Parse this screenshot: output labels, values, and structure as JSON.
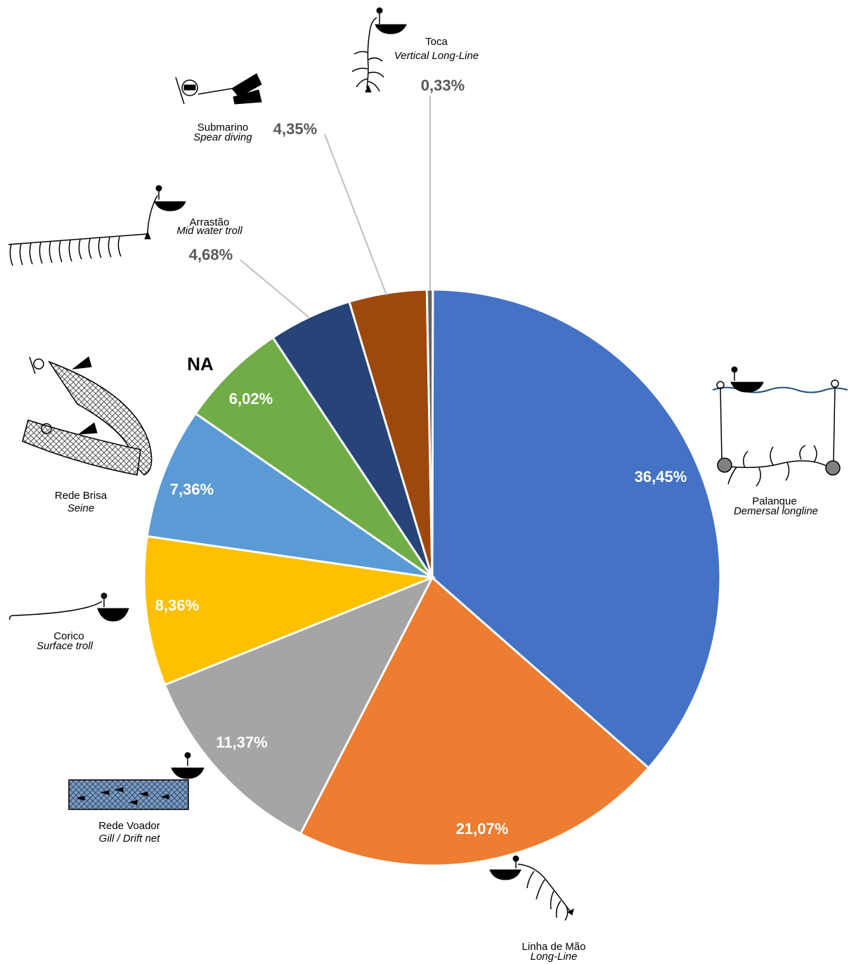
{
  "chart_data": {
    "type": "pie",
    "title": "",
    "slices": [
      {
        "label": "Palanque",
        "sublabel": "Demersal longline",
        "value": 36.45,
        "value_label": "36,45%",
        "color": "#4472C4",
        "icon": "demersal-longline-icon"
      },
      {
        "label": "Linha de Mão",
        "sublabel": "Long-Line",
        "value": 21.07,
        "value_label": "21,07%",
        "color": "#ED7D31",
        "icon": "hand-line-icon"
      },
      {
        "label": "Rede Voador",
        "sublabel": "Gill / Drift net",
        "value": 11.37,
        "value_label": "11,37%",
        "color": "#A5A5A5",
        "icon": "gill-net-icon"
      },
      {
        "label": "Corico",
        "sublabel": "Surface troll",
        "value": 8.36,
        "value_label": "8,36%",
        "color": "#FFC000",
        "icon": "surface-troll-icon"
      },
      {
        "label": "Rede Brisa",
        "sublabel": "Seine",
        "value": 7.36,
        "value_label": "7,36%",
        "color": "#5B9BD5",
        "icon": "seine-icon"
      },
      {
        "label": "",
        "sublabel": "",
        "value": 6.02,
        "value_label": "6,02%",
        "color": "#70AD47",
        "icon": ""
      },
      {
        "label": "Arrastão",
        "sublabel": "Mid water troll",
        "value": 4.68,
        "value_label": "4,68%",
        "color": "#264478",
        "icon": "mid-water-troll-icon"
      },
      {
        "label": "Submarino",
        "sublabel": "Spear diving",
        "value": 4.35,
        "value_label": "4,35%",
        "color": "#9E480E",
        "icon": "spear-diving-icon"
      },
      {
        "label": "Toca",
        "sublabel": "Vertical Long-Line",
        "value": 0.33,
        "value_label": "0,33%",
        "color": "#636363",
        "icon": "vertical-longline-icon"
      }
    ],
    "annotations": [
      "NA"
    ],
    "legend": "none"
  }
}
